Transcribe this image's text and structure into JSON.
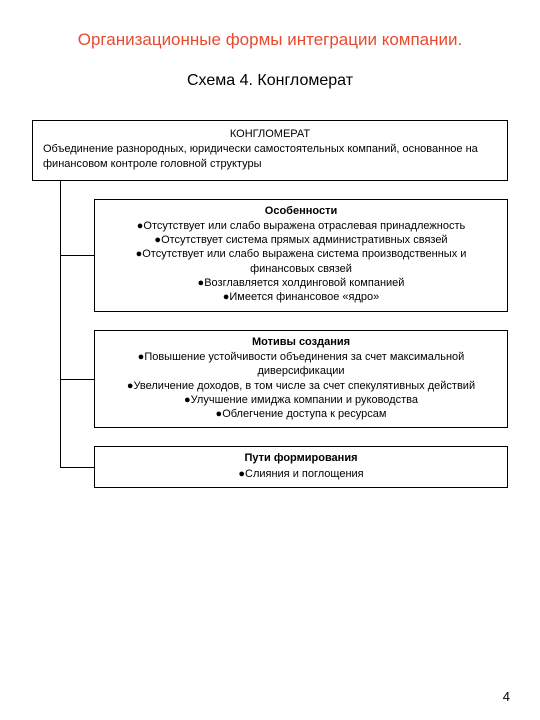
{
  "page": {
    "title": "Организационные формы интеграции компании.",
    "subtitle": "Схема 4. Конгломерат",
    "page_number": "4",
    "title_color": "#e84a2e",
    "text_color": "#000000",
    "background": "#ffffff",
    "border_color": "#000000"
  },
  "main_box": {
    "title": "КОНГЛОМЕРАТ",
    "description": "Объединение разнородных, юридически самостоятельных компаний, основанное на финансовом контроле головной структуры"
  },
  "children": [
    {
      "title": "Особенности",
      "items": [
        "●Отсутствует или слабо выражена отраслевая принадлежность",
        "●Отсутствует система прямых административных связей",
        "●Отсутствует или слабо выражена система производственных и финансовых связей",
        "●Возглавляется холдинговой компанией",
        "●Имеется финансовое «ядро»"
      ]
    },
    {
      "title": "Мотивы создания",
      "items": [
        "●Повышение устойчивости объединения за счет максимальной диверсификации",
        "●Увеличение доходов, в том числе за счет спекулятивных действий",
        "●Улучшение имиджа компании и руководства",
        "●Облегчение доступа к ресурсам"
      ]
    },
    {
      "title": "Пути формирования",
      "items": [
        "●Слияния и поглощения"
      ]
    }
  ],
  "layout": {
    "vline_height": 320,
    "conn_offsets": [
      60,
      195,
      300
    ],
    "conn_width": 34,
    "child_gap": 18
  }
}
